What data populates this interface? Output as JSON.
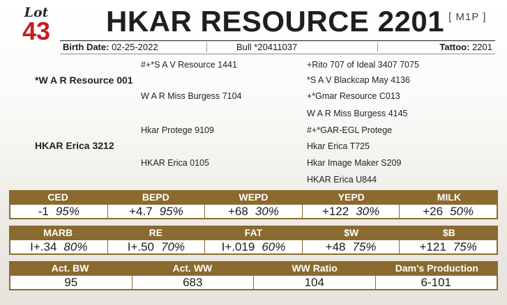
{
  "lot": {
    "word": "Lot",
    "number": "43"
  },
  "animal": {
    "name": "HKAR RESOURCE 2201",
    "code": "[ M1P ]"
  },
  "info": {
    "birth_label": "Birth Date:",
    "birth_value": "02-25-2022",
    "reg": "Bull *20411037",
    "tattoo_label": "Tattoo:",
    "tattoo_value": "2201"
  },
  "pedigree": {
    "sire": "*W A R Resource 001",
    "dam": "HKAR Erica 3212",
    "sire_sire": "#+*S A V Resource 1441",
    "sire_dam": "W A R Miss Burgess 7104",
    "dam_sire": "Hkar Protege 9109",
    "dam_dam": "HKAR Erica 0105",
    "sss": "+Rito 707 of Ideal 3407 7075",
    "ssd": "*S A V Blackcap May 4136",
    "sds": "+*Gmar Resource C013",
    "sdd": "W A R Miss Burgess 4145",
    "dss": "#+*GAR-EGL Protege",
    "dsd": "Hkar Erica T725",
    "dds": "Hkar Image Maker S209",
    "ddd": "HKAR Erica U844"
  },
  "epd_row1": [
    {
      "label": "CED",
      "value": "-1",
      "acc": "95%"
    },
    {
      "label": "BEPD",
      "value": "+4.7",
      "acc": "95%"
    },
    {
      "label": "WEPD",
      "value": "+68",
      "acc": "30%"
    },
    {
      "label": "YEPD",
      "value": "+122",
      "acc": "30%"
    },
    {
      "label": "MILK",
      "value": "+26",
      "acc": "50%"
    }
  ],
  "epd_row2": [
    {
      "label": "MARB",
      "value": "I+.34",
      "acc": "80%"
    },
    {
      "label": "RE",
      "value": "I+.50",
      "acc": "70%"
    },
    {
      "label": "FAT",
      "value": "I+.019",
      "acc": "60%"
    },
    {
      "label": "$W",
      "value": "+48",
      "acc": "75%"
    },
    {
      "label": "$B",
      "value": "+121",
      "acc": "75%"
    }
  ],
  "perf_row": [
    {
      "label": "Act. BW",
      "value": "95"
    },
    {
      "label": "Act. WW",
      "value": "683"
    },
    {
      "label": "WW Ratio",
      "value": "104"
    },
    {
      "label": "Dam's Production",
      "value": "6-101"
    }
  ],
  "colors": {
    "accent": "#8a6a2e",
    "lot": "#c41e24"
  }
}
